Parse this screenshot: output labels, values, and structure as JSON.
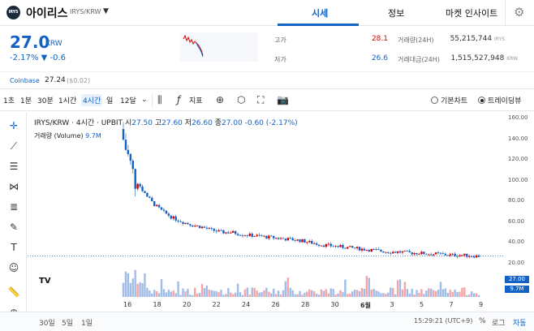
{
  "header": {
    "logo_text": "IRYS",
    "coin_name": "아이리스",
    "coin_pair": "IRYS/KRW",
    "dropdown_icon": "caret-down-icon",
    "tabs": [
      {
        "label": "시세",
        "active": true
      },
      {
        "label": "정보",
        "active": false
      },
      {
        "label": "마켓 인사이트",
        "active": false
      }
    ],
    "settings_icon": "gear-icon"
  },
  "ticker": {
    "price": "27.0",
    "unit": "KRW",
    "change_rate": "-2.17%",
    "change_arrow": "▼",
    "change_amount": "-0.6",
    "high_label": "고가",
    "high_value": "28.1",
    "low_label": "저가",
    "low_value": "26.6",
    "volume_label": "거래량(24H)",
    "volume_value": "55,215,744",
    "volume_unit": "IRYS",
    "value_label": "거래대금(24H)",
    "value_value": "1,515,527,948",
    "value_unit": "KRW",
    "ref_exchange": "Coinbase",
    "ref_price": "27.24",
    "ref_usd": "($0.02)"
  },
  "toolbar": {
    "timeframes": [
      "1초",
      "1분",
      "30분",
      "1시간",
      "4시간",
      "일",
      "12달"
    ],
    "active_timeframe": "4시간",
    "indicator_label": "지표",
    "chart_mode_basic": "기본차트",
    "chart_mode_tv": "트레이딩뷰",
    "selected_mode": "트레이딩뷰"
  },
  "legend": {
    "symbol": "IRYS/KRW · 4시간 · UPBIT",
    "open_label": "시",
    "open": "27.50",
    "high_label": "고",
    "high": "27.60",
    "low_label": "저",
    "low": "26.60",
    "close_label": "종",
    "close": "27.00",
    "change": "-0.60 (-2.17%)",
    "volume_label": "거래량 (Volume)",
    "volume_value": "9.7M"
  },
  "chart_data": {
    "type": "candlestick",
    "y_ticks": [
      "160.00",
      "140.00",
      "120.00",
      "100.00",
      "80.00",
      "60.00",
      "40.00",
      "20.00"
    ],
    "ylim": [
      0,
      165
    ],
    "x_ticks": [
      "16",
      "18",
      "20",
      "22",
      "24",
      "26",
      "28",
      "30",
      "6월",
      "3",
      "5",
      "7",
      "9"
    ],
    "last_price_tag": "27.00",
    "volume_tag": "9.7M",
    "close_path": [
      140,
      105,
      90,
      78,
      70,
      64,
      60,
      57,
      55,
      52,
      50,
      50,
      48,
      47,
      46,
      45,
      44,
      43,
      42,
      40,
      38,
      37,
      36,
      35,
      34,
      33,
      32,
      31,
      31,
      30,
      30,
      29,
      29,
      28,
      28,
      27.5,
      27
    ]
  },
  "bottom": {
    "ranges": [
      "30일",
      "5일",
      "1일"
    ],
    "time": "15:29:21 (UTC+9)",
    "percent": "%",
    "log": "로그",
    "auto": "자동"
  }
}
